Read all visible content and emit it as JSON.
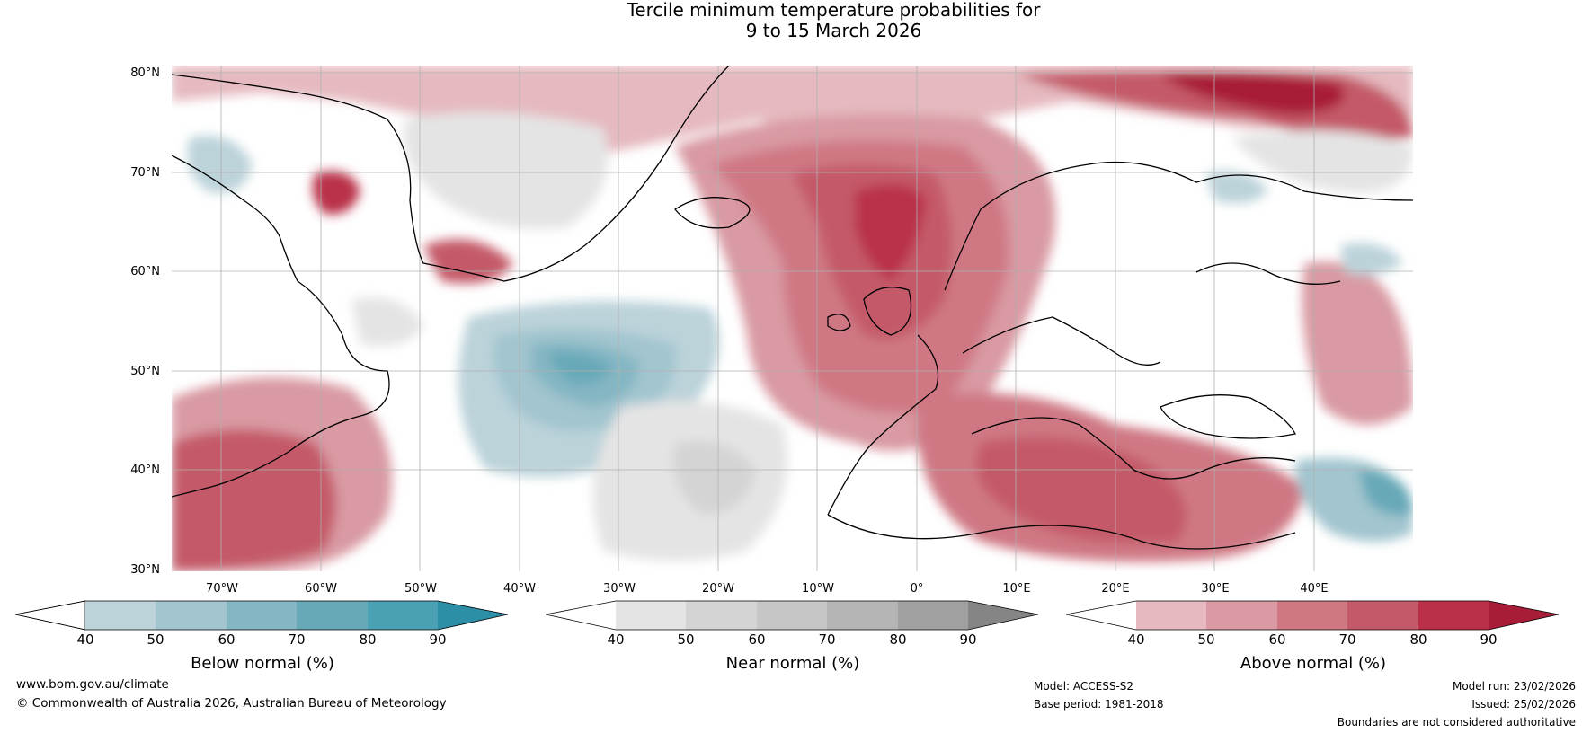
{
  "title": {
    "line1": "Tercile minimum temperature probabilities for",
    "line2": "9 to 15 March 2026"
  },
  "map": {
    "lat_labels": [
      "80°N",
      "70°N",
      "60°N",
      "50°N",
      "40°N",
      "30°N"
    ],
    "lon_labels": [
      "70°W",
      "60°W",
      "50°W",
      "40°W",
      "30°W",
      "20°W",
      "10°W",
      "0°",
      "10°E",
      "20°E",
      "30°E",
      "40°E"
    ],
    "lat_range": [
      30,
      81
    ],
    "lon_range": [
      -77,
      48
    ]
  },
  "colorbars": [
    {
      "label": "Below normal (%)",
      "ticks": [
        "40",
        "50",
        "60",
        "70",
        "80",
        "90"
      ],
      "colors": [
        "#ffffff",
        "#bcd3da",
        "#a2c5cf",
        "#84b6c3",
        "#68a9b8",
        "#4ba1b4",
        "#2c8fa6"
      ]
    },
    {
      "label": "Near normal (%)",
      "ticks": [
        "40",
        "50",
        "60",
        "70",
        "80",
        "90"
      ],
      "colors": [
        "#ffffff",
        "#e4e4e4",
        "#d4d4d4",
        "#c6c6c6",
        "#b4b4b4",
        "#a0a0a0",
        "#858585"
      ]
    },
    {
      "label": "Above normal (%)",
      "ticks": [
        "40",
        "50",
        "60",
        "70",
        "80",
        "90"
      ],
      "colors": [
        "#ffffff",
        "#e5b9bf",
        "#d99aa3",
        "#cf7884",
        "#c45a69",
        "#b93048",
        "#a81c38"
      ]
    }
  ],
  "footer": {
    "website": "www.bom.gov.au/climate",
    "copyright": "© Commonwealth of Australia 2026, Australian Bureau of Meteorology",
    "model": "Model: ACCESS-S2",
    "base_period": "Base period: 1981-2018",
    "model_run": "Model run: 23/02/2026",
    "issued": "Issued: 25/02/2026",
    "disclaimer": "Boundaries are not considered authoritative"
  }
}
